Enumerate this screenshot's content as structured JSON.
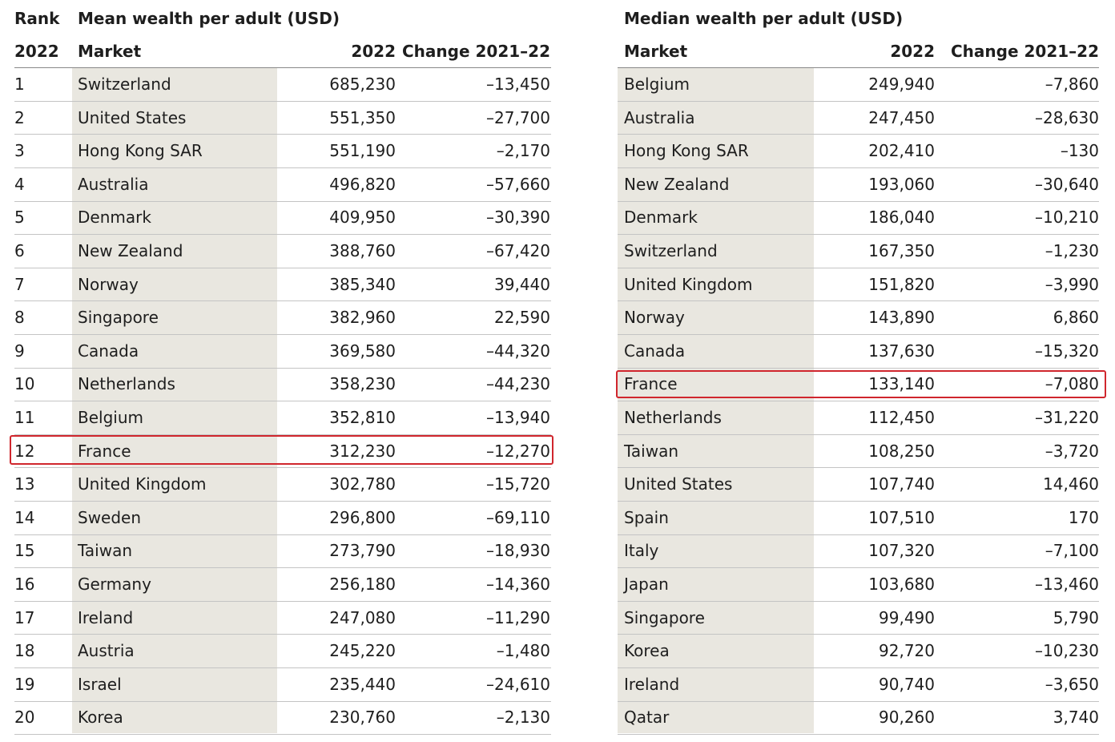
{
  "left": {
    "rank_header": "Rank",
    "title": "Mean wealth per adult (USD)",
    "columns": [
      "2022",
      "Market",
      "2022",
      "Change 2021–22"
    ],
    "rows": [
      [
        "1",
        "Switzerland",
        "685,230",
        "–13,450"
      ],
      [
        "2",
        "United States",
        "551,350",
        "–27,700"
      ],
      [
        "3",
        "Hong Kong SAR",
        "551,190",
        "–2,170"
      ],
      [
        "4",
        "Australia",
        "496,820",
        "–57,660"
      ],
      [
        "5",
        "Denmark",
        "409,950",
        "–30,390"
      ],
      [
        "6",
        "New Zealand",
        "388,760",
        "–67,420"
      ],
      [
        "7",
        "Norway",
        "385,340",
        "39,440"
      ],
      [
        "8",
        "Singapore",
        "382,960",
        "22,590"
      ],
      [
        "9",
        "Canada",
        "369,580",
        "–44,320"
      ],
      [
        "10",
        "Netherlands",
        "358,230",
        "–44,230"
      ],
      [
        "11",
        "Belgium",
        "352,810",
        "–13,940"
      ],
      [
        "12",
        "France",
        "312,230",
        "–12,270"
      ],
      [
        "13",
        "United Kingdom",
        "302,780",
        "–15,720"
      ],
      [
        "14",
        "Sweden",
        "296,800",
        "–69,110"
      ],
      [
        "15",
        "Taiwan",
        "273,790",
        "–18,930"
      ],
      [
        "16",
        "Germany",
        "256,180",
        "–14,360"
      ],
      [
        "17",
        "Ireland",
        "247,080",
        "–11,290"
      ],
      [
        "18",
        "Austria",
        "245,220",
        "–1,480"
      ],
      [
        "19",
        "Israel",
        "235,440",
        "–24,610"
      ],
      [
        "20",
        "Korea",
        "230,760",
        "–2,130"
      ]
    ]
  },
  "right": {
    "title": "Median wealth per adult (USD)",
    "columns": [
      "Market",
      "2022",
      "Change 2021–22"
    ],
    "rows": [
      [
        "Belgium",
        "249,940",
        "–7,860"
      ],
      [
        "Australia",
        "247,450",
        "–28,630"
      ],
      [
        "Hong Kong SAR",
        "202,410",
        "–130"
      ],
      [
        "New Zealand",
        "193,060",
        "–30,640"
      ],
      [
        "Denmark",
        "186,040",
        "–10,210"
      ],
      [
        "Switzerland",
        "167,350",
        "–1,230"
      ],
      [
        "United Kingdom",
        "151,820",
        "–3,990"
      ],
      [
        "Norway",
        "143,890",
        "6,860"
      ],
      [
        "Canada",
        "137,630",
        "–15,320"
      ],
      [
        "France",
        "133,140",
        "–7,080"
      ],
      [
        "Netherlands",
        "112,450",
        "–31,220"
      ],
      [
        "Taiwan",
        "108,250",
        "–3,720"
      ],
      [
        "United States",
        "107,740",
        "14,460"
      ],
      [
        "Spain",
        "107,510",
        "170"
      ],
      [
        "Italy",
        "107,320",
        "–7,100"
      ],
      [
        "Japan",
        "103,680",
        "–13,460"
      ],
      [
        "Singapore",
        "99,490",
        "5,790"
      ],
      [
        "Korea",
        "92,720",
        "–10,230"
      ],
      [
        "Ireland",
        "90,740",
        "–3,650"
      ],
      [
        "Qatar",
        "90,260",
        "3,740"
      ]
    ]
  }
}
